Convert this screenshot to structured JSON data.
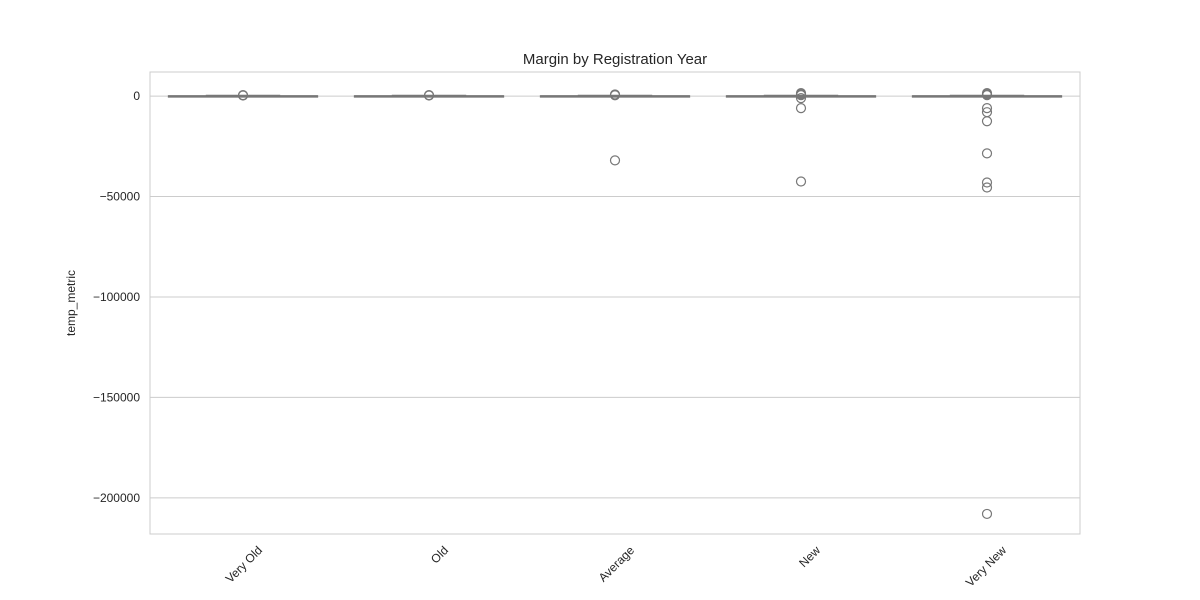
{
  "chart_data": {
    "type": "box",
    "title": "Margin by Registration Year",
    "xlabel": "",
    "ylabel": "temp_metric",
    "categories": [
      "Very Old",
      "Old",
      "Average",
      "New",
      "Very New"
    ],
    "ylim": [
      -218000,
      12000
    ],
    "yticks": [
      0,
      -50000,
      -100000,
      -150000,
      -200000
    ],
    "ytick_labels": [
      "0",
      "−50000",
      "−100000",
      "−150000",
      "−200000"
    ],
    "grid": true,
    "box_color": "#dbe4ee",
    "line_color": "#777777",
    "boxes": [
      {
        "category": "Very Old",
        "whislo": -300,
        "q1": -100,
        "median": 0,
        "q3": 100,
        "whishi": 300,
        "fliers": [
          500,
          300
        ]
      },
      {
        "category": "Old",
        "whislo": -300,
        "q1": -100,
        "median": 0,
        "q3": 100,
        "whishi": 300,
        "fliers": [
          500,
          300
        ]
      },
      {
        "category": "Average",
        "whislo": -300,
        "q1": -100,
        "median": 0,
        "q3": 100,
        "whishi": 300,
        "fliers": [
          800,
          400,
          -32000
        ]
      },
      {
        "category": "New",
        "whislo": -300,
        "q1": -100,
        "median": 0,
        "q3": 100,
        "whishi": 300,
        "fliers": [
          1500,
          1000,
          500,
          -1000,
          -6000,
          -42500
        ]
      },
      {
        "category": "Very New",
        "whislo": -300,
        "q1": -100,
        "median": 0,
        "q3": 100,
        "whishi": 300,
        "fliers": [
          1500,
          1000,
          500,
          -6000,
          -8000,
          -12500,
          -28500,
          -43000,
          -45500,
          -208000
        ]
      }
    ]
  }
}
